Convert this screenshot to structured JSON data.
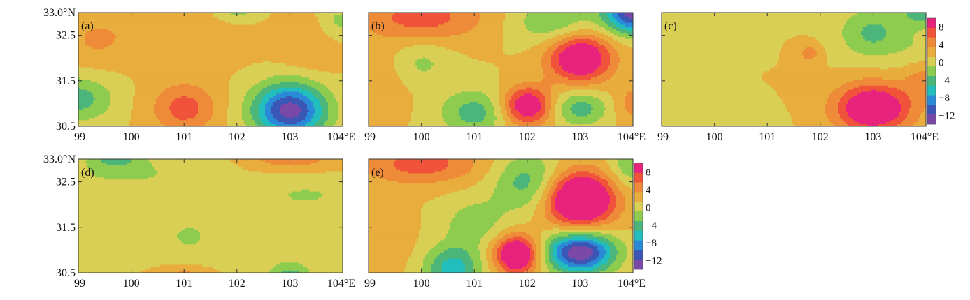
{
  "chart_data": {
    "type": "heatmap",
    "x_ticks": [
      "99",
      "100",
      "101",
      "102",
      "103",
      "104°E"
    ],
    "y_ticks": [
      "33.0°N",
      "32.5",
      "31.5",
      "30.5"
    ],
    "xlim": [
      99,
      104
    ],
    "ylim": [
      30.5,
      33.0
    ],
    "colorbar": {
      "levels": [
        -14,
        -12,
        -10,
        -8,
        -6,
        -4,
        -2,
        0,
        2,
        4,
        6,
        8,
        10
      ],
      "tick_labels": [
        "8",
        "4",
        "0",
        "−4",
        "−8",
        "−12"
      ],
      "tick_values": [
        8,
        4,
        0,
        -4,
        -8,
        -12
      ],
      "colors": [
        "#7a49a8",
        "#3a57b6",
        "#2a8ad8",
        "#22bdbd",
        "#4cb67a",
        "#8ecc4f",
        "#d8cf54",
        "#e8ad3c",
        "#ee8b38",
        "#f0533a",
        "#e8237d"
      ]
    },
    "panels": [
      {
        "label": "(a)",
        "features": [
          {
            "x": 103.0,
            "y": 30.85,
            "value": -13,
            "sx": 0.48,
            "sy": 0.42
          },
          {
            "x": 101.0,
            "y": 30.9,
            "value": 5,
            "sx": 0.42,
            "sy": 0.38
          },
          {
            "x": 99.0,
            "y": 31.1,
            "value": -5,
            "sx": 0.45,
            "sy": 0.35
          },
          {
            "x": 101.0,
            "y": 32.6,
            "value": 2,
            "sx": 0.9,
            "sy": 0.45
          },
          {
            "x": 103.4,
            "y": 32.4,
            "value": 2,
            "sx": 0.45,
            "sy": 0.5
          },
          {
            "x": 99.3,
            "y": 32.4,
            "value": 2,
            "sx": 0.45,
            "sy": 0.4
          },
          {
            "x": 103.9,
            "y": 32.8,
            "value": -3,
            "sx": 0.3,
            "sy": 0.3
          },
          {
            "x": 102.0,
            "y": 33.0,
            "value": -3,
            "sx": 0.35,
            "sy": 0.18
          }
        ]
      },
      {
        "label": "(b)",
        "features": [
          {
            "x": 103.0,
            "y": 32.0,
            "value": 10,
            "sx": 0.42,
            "sy": 0.38
          },
          {
            "x": 102.0,
            "y": 30.95,
            "value": 9,
            "sx": 0.33,
            "sy": 0.3
          },
          {
            "x": 103.0,
            "y": 30.9,
            "value": -5,
            "sx": 0.38,
            "sy": 0.28
          },
          {
            "x": 104.0,
            "y": 33.0,
            "value": -13,
            "sx": 0.38,
            "sy": 0.32
          },
          {
            "x": 102.5,
            "y": 32.8,
            "value": -4,
            "sx": 0.55,
            "sy": 0.35
          },
          {
            "x": 100.0,
            "y": 32.9,
            "value": 5,
            "sx": 0.85,
            "sy": 0.38
          },
          {
            "x": 101.0,
            "y": 30.8,
            "value": -5,
            "sx": 0.45,
            "sy": 0.35
          },
          {
            "x": 100.0,
            "y": 31.9,
            "value": -2.5,
            "sx": 0.4,
            "sy": 0.35
          },
          {
            "x": 99.2,
            "y": 31.5,
            "value": 1.5,
            "sx": 0.4,
            "sy": 0.5
          },
          {
            "x": 104.0,
            "y": 31.0,
            "value": 3,
            "sx": 0.25,
            "sy": 0.3
          }
        ]
      },
      {
        "label": "(c)",
        "features": [
          {
            "x": 103.0,
            "y": 30.9,
            "value": 10,
            "sx": 0.5,
            "sy": 0.38
          },
          {
            "x": 104.0,
            "y": 31.6,
            "value": 4,
            "sx": 0.3,
            "sy": 0.35
          },
          {
            "x": 103.0,
            "y": 32.55,
            "value": -4.5,
            "sx": 0.45,
            "sy": 0.4
          },
          {
            "x": 104.0,
            "y": 33.0,
            "value": -5,
            "sx": 0.35,
            "sy": 0.2
          },
          {
            "x": 101.8,
            "y": 32.1,
            "value": 3,
            "sx": 0.15,
            "sy": 0.15
          },
          {
            "x": 99.3,
            "y": 32.8,
            "value": -2,
            "sx": 0.6,
            "sy": 0.35
          },
          {
            "x": 100.7,
            "y": 30.5,
            "value": -2,
            "sx": 0.3,
            "sy": 0.25
          },
          {
            "x": 104.0,
            "y": 32.0,
            "value": -2.5,
            "sx": 0.35,
            "sy": 0.4
          }
        ]
      },
      {
        "label": "(d)",
        "features": [
          {
            "x": 100.0,
            "y": 32.7,
            "value": -2.2,
            "sx": 1.1,
            "sy": 0.35
          },
          {
            "x": 101.1,
            "y": 31.3,
            "value": -2.2,
            "sx": 0.5,
            "sy": 0.4
          },
          {
            "x": 103.3,
            "y": 32.2,
            "value": -2.2,
            "sx": 0.7,
            "sy": 0.25
          },
          {
            "x": 103.0,
            "y": 30.6,
            "value": -2.5,
            "sx": 0.4,
            "sy": 0.2
          },
          {
            "x": 103.0,
            "y": 30.45,
            "value": -4,
            "sx": 0.2,
            "sy": 0.08
          },
          {
            "x": 99.0,
            "y": 31.3,
            "value": -2,
            "sx": 0.35,
            "sy": 0.7
          },
          {
            "x": 103.0,
            "y": 33.0,
            "value": 3.5,
            "sx": 0.55,
            "sy": 0.15
          },
          {
            "x": 99.7,
            "y": 33.0,
            "value": -4,
            "sx": 0.3,
            "sy": 0.12
          },
          {
            "x": 101.0,
            "y": 30.5,
            "value": 2.5,
            "sx": 0.3,
            "sy": 0.12
          }
        ]
      },
      {
        "label": "(e)",
        "features": [
          {
            "x": 103.0,
            "y": 32.1,
            "value": 13,
            "sx": 0.45,
            "sy": 0.42
          },
          {
            "x": 103.0,
            "y": 30.95,
            "value": -14,
            "sx": 0.45,
            "sy": 0.32
          },
          {
            "x": 101.8,
            "y": 30.9,
            "value": 11,
            "sx": 0.3,
            "sy": 0.3
          },
          {
            "x": 102.0,
            "y": 32.5,
            "value": -5,
            "sx": 0.45,
            "sy": 0.45
          },
          {
            "x": 100.6,
            "y": 30.6,
            "value": -7,
            "sx": 0.38,
            "sy": 0.35
          },
          {
            "x": 100.0,
            "y": 32.9,
            "value": 5,
            "sx": 0.8,
            "sy": 0.32
          },
          {
            "x": 101.0,
            "y": 31.6,
            "value": -3,
            "sx": 0.45,
            "sy": 0.4
          },
          {
            "x": 104.0,
            "y": 32.9,
            "value": -4,
            "sx": 0.3,
            "sy": 0.35
          },
          {
            "x": 99.2,
            "y": 31.3,
            "value": 2,
            "sx": 0.4,
            "sy": 0.55
          }
        ]
      }
    ]
  }
}
